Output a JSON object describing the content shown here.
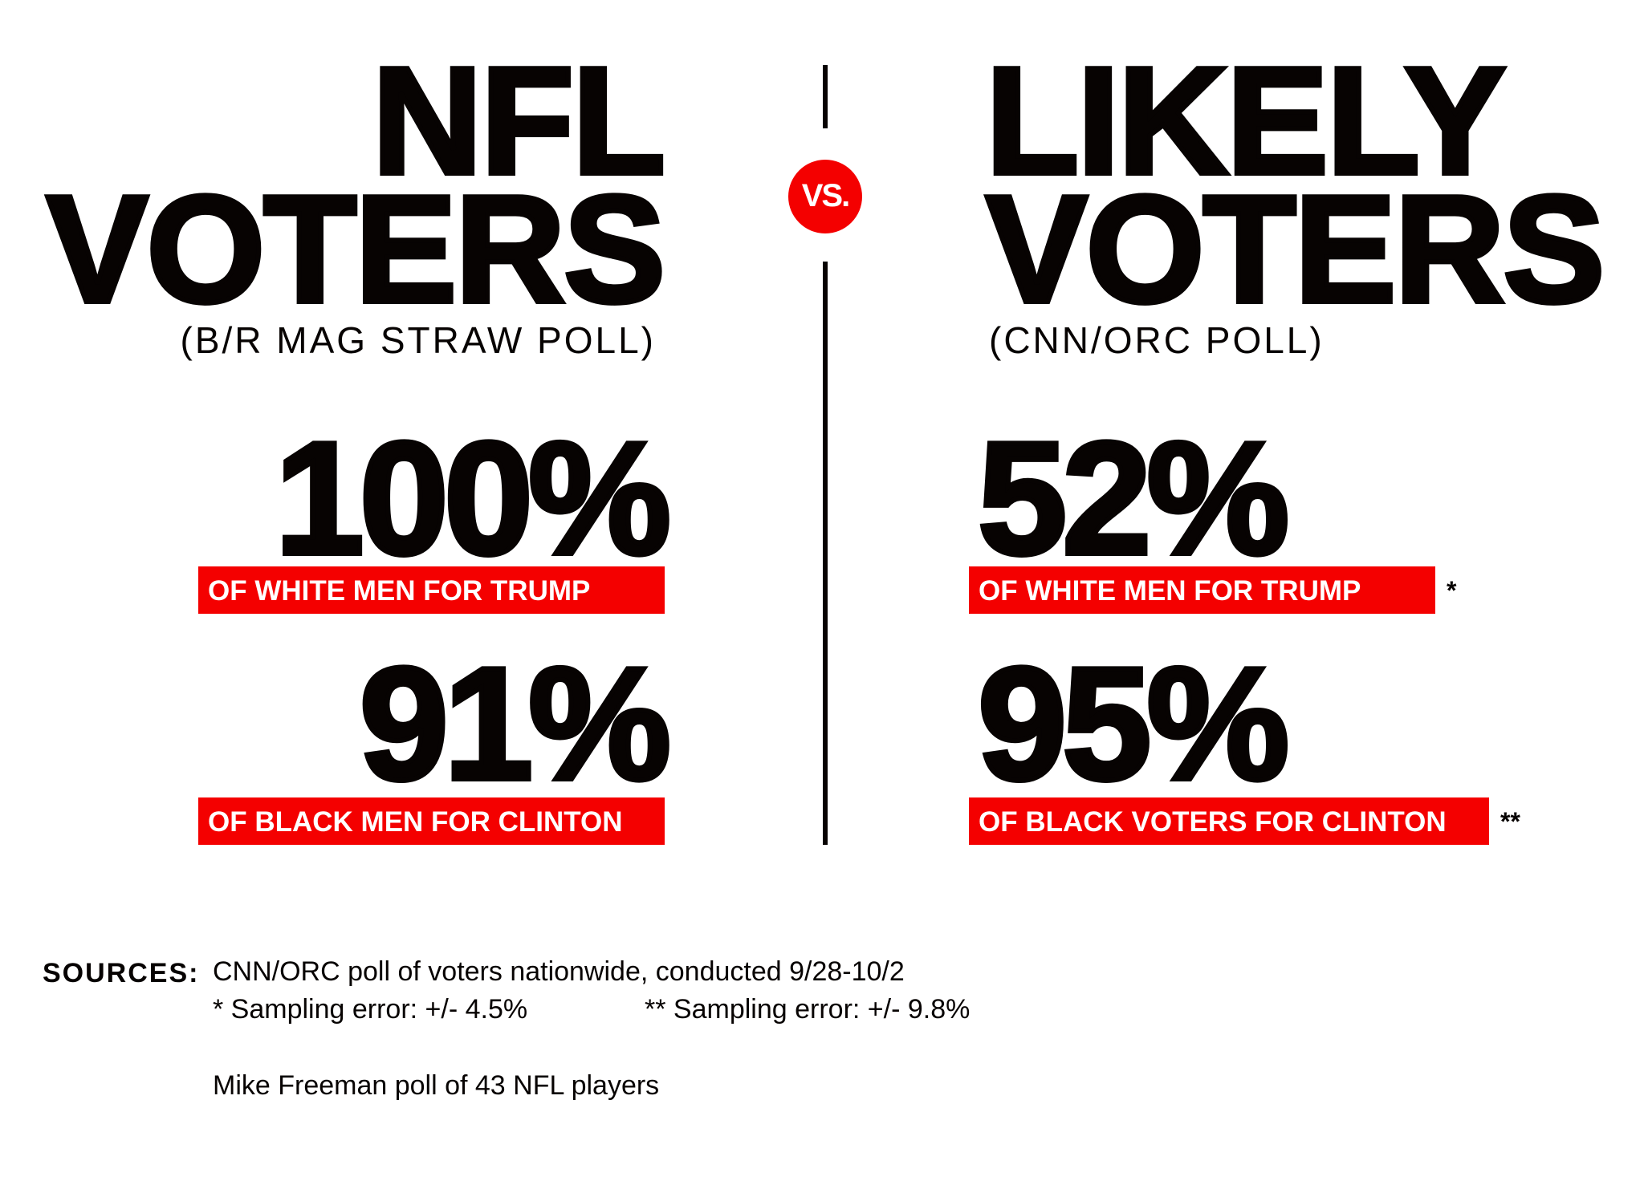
{
  "left": {
    "title_line1": "NFL",
    "title_line2": "VOTERS",
    "subtitle": "(B/R MAG STRAW POLL)",
    "stat1_value": "100%",
    "stat1_label": "OF WHITE MEN FOR TRUMP",
    "stat2_value": "91%",
    "stat2_label": "OF BLACK MEN FOR CLINTON"
  },
  "vs_label": "VS.",
  "right": {
    "title_line1": "LIKELY",
    "title_line2": "VOTERS",
    "subtitle": "(CNN/ORC POLL)",
    "stat1_value": "52%",
    "stat1_label": "OF WHITE MEN FOR TRUMP",
    "stat1_mark": "*",
    "stat2_value": "95%",
    "stat2_label": "OF BLACK VOTERS FOR CLINTON",
    "stat2_mark": "**"
  },
  "sources": {
    "heading": "SOURCES:",
    "line1": "CNN/ORC poll of voters nationwide, conducted 9/28-10/2",
    "error1": "* Sampling error: +/- 4.5%",
    "error2": "** Sampling error: +/- 9.8%",
    "line3": "Mike Freeman poll of 43 NFL players"
  },
  "colors": {
    "accent": "#f40000",
    "text": "#070302"
  }
}
